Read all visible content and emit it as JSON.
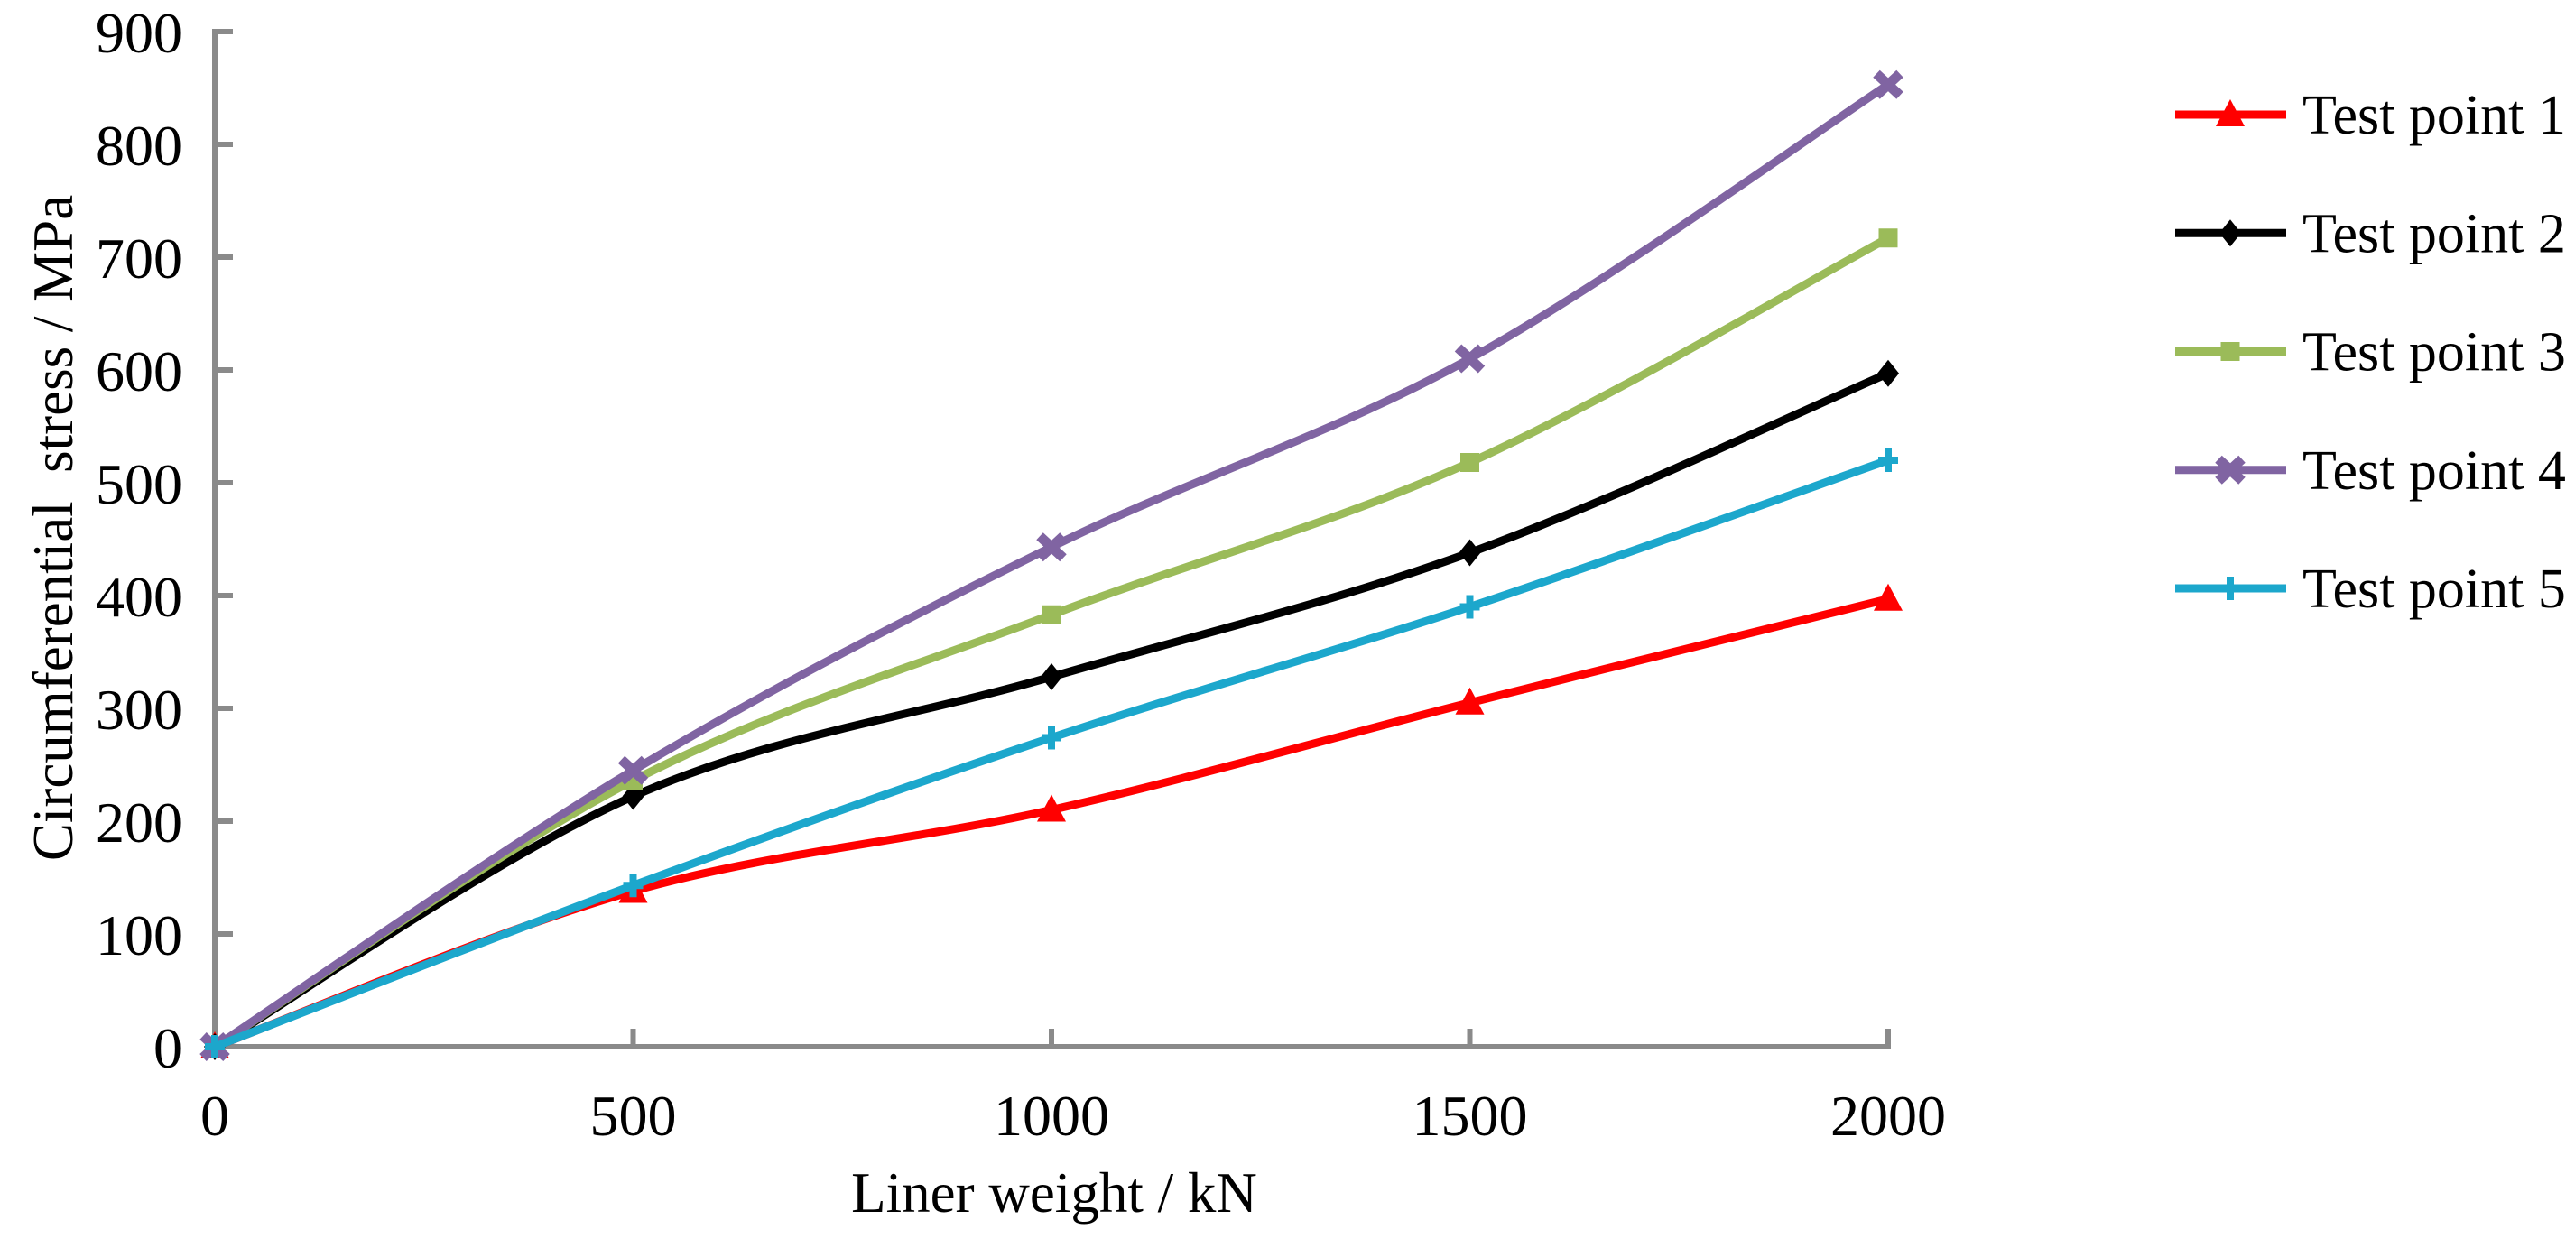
{
  "chart_data": {
    "type": "line",
    "smooth": true,
    "title": "",
    "xlabel": "Liner weight / kN",
    "ylabel": "Circumferential  stress / MPa",
    "x": [
      0,
      500,
      1000,
      1500,
      2000
    ],
    "series": [
      {
        "name": "Test point 1",
        "color": "#FF0000",
        "marker": "triangle",
        "values": [
          0,
          138,
          210,
          305,
          397
        ]
      },
      {
        "name": "Test point 2",
        "color": "#000000",
        "marker": "diamond",
        "values": [
          0,
          222,
          328,
          438,
          597
        ]
      },
      {
        "name": "Test point 3",
        "color": "#9BBB59",
        "marker": "square",
        "values": [
          0,
          236,
          383,
          518,
          717
        ]
      },
      {
        "name": "Test point 4",
        "color": "#8064A2",
        "marker": "x",
        "values": [
          0,
          245,
          443,
          610,
          853
        ]
      },
      {
        "name": "Test point 5",
        "color": "#1CA7CC",
        "marker": "plus",
        "values": [
          0,
          143,
          274,
          390,
          520
        ]
      }
    ],
    "xlim": [
      0,
      2000
    ],
    "ylim": [
      0,
      900
    ],
    "xticks": [
      0,
      500,
      1000,
      1500,
      2000
    ],
    "yticks": [
      0,
      100,
      200,
      300,
      400,
      500,
      600,
      700,
      800,
      900
    ],
    "grid": false,
    "legend_position": "right",
    "axis_color": "#8A8A8A",
    "text_color": "#000000"
  }
}
